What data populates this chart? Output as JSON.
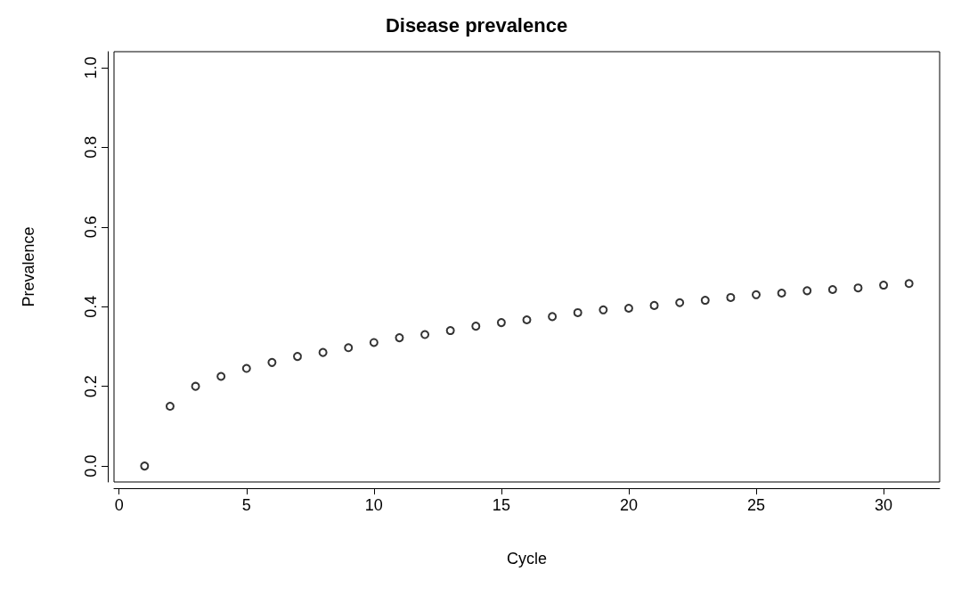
{
  "chart_data": {
    "type": "scatter",
    "title": "Disease prevalence",
    "xlabel": "Cycle",
    "ylabel": "Prevalence",
    "x": [
      1,
      2,
      3,
      4,
      5,
      6,
      7,
      8,
      9,
      10,
      11,
      12,
      13,
      14,
      15,
      16,
      17,
      18,
      19,
      20,
      21,
      22,
      23,
      24,
      25,
      26,
      27,
      28,
      29,
      30,
      31
    ],
    "series": [
      {
        "color": "#000000",
        "values": [
          0,
          0.15,
          0.2,
          0.225,
          0.245,
          0.26,
          0.275,
          0.285,
          0.297,
          0.31,
          0.322,
          0.33,
          0.34,
          0.351,
          0.36,
          0.367,
          0.375,
          0.385,
          0.392,
          0.396,
          0.403,
          0.41,
          0.416,
          0.423,
          0.43,
          0.434,
          0.44,
          0.443,
          0.447,
          0.454,
          0.458
        ]
      }
    ],
    "xlim": [
      -0.2,
      32.2
    ],
    "xticks": [
      0,
      5,
      10,
      15,
      20,
      25,
      30
    ],
    "ylim": [
      -0.04,
      1.04
    ],
    "yticks": [
      {
        "value": 0,
        "label": "0.0"
      },
      0.2,
      0.4,
      0.6,
      0.8,
      {
        "value": 1,
        "label": "1.0"
      }
    ],
    "grid": false,
    "marker": "circle"
  }
}
